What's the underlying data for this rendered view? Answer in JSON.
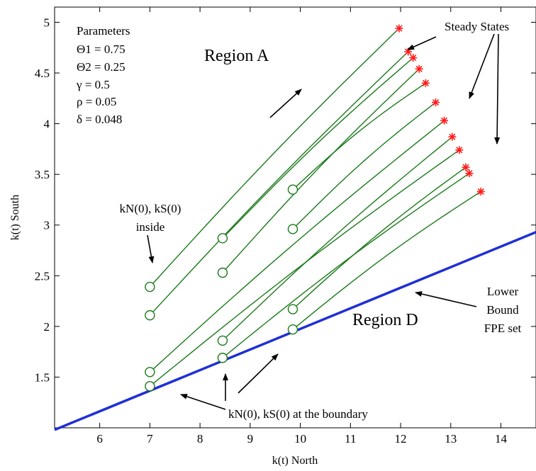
{
  "chart_data": {
    "type": "line",
    "title": "",
    "xlabel": "k(t) North",
    "ylabel": "k(t) South",
    "xlim": [
      5.1,
      14.7
    ],
    "ylim": [
      1.0,
      5.15
    ],
    "xticks": [
      6,
      7,
      8,
      9,
      10,
      11,
      12,
      13,
      14
    ],
    "yticks": [
      1.5,
      2,
      2.5,
      3,
      3.5,
      4,
      4.5,
      5
    ],
    "xtick_labels": [
      "6",
      "7",
      "8",
      "9",
      "10",
      "11",
      "12",
      "13",
      "14"
    ],
    "ytick_labels": [
      "1.5",
      "2",
      "2.5",
      "3",
      "3.5",
      "4",
      "4.5",
      "5"
    ],
    "grid": false,
    "colors": {
      "trajectory": "#1a7a1a",
      "boundary": "#1f2fd6",
      "steady_state": "#ff1a1a",
      "start_marker": "#1a7a1a"
    },
    "boundary": {
      "name": "Lower Bound FPE set",
      "x": [
        5.1,
        14.7
      ],
      "y": [
        0.98,
        2.93
      ]
    },
    "trajectories": [
      {
        "start": [
          7.0,
          2.39
        ],
        "end": [
          11.97,
          4.94
        ]
      },
      {
        "start": [
          7.0,
          2.11
        ],
        "end": [
          12.15,
          4.71
        ]
      },
      {
        "start": [
          8.45,
          2.87
        ],
        "end": [
          12.25,
          4.65
        ]
      },
      {
        "start": [
          8.45,
          2.53
        ],
        "end": [
          12.37,
          4.54
        ]
      },
      {
        "start": [
          9.85,
          3.35
        ],
        "end": [
          12.5,
          4.4
        ]
      },
      {
        "start": [
          9.85,
          2.96
        ],
        "end": [
          12.7,
          4.21
        ]
      },
      {
        "start": [
          7.0,
          1.55
        ],
        "end": [
          12.87,
          4.03
        ]
      },
      {
        "start": [
          8.45,
          1.86
        ],
        "end": [
          13.03,
          3.87
        ]
      },
      {
        "start": [
          7.0,
          1.41
        ],
        "end": [
          13.17,
          3.74
        ]
      },
      {
        "start": [
          9.85,
          2.17
        ],
        "end": [
          13.3,
          3.57
        ]
      },
      {
        "start": [
          8.45,
          1.69
        ],
        "end": [
          13.37,
          3.51
        ]
      },
      {
        "start": [
          9.85,
          1.97
        ],
        "end": [
          13.6,
          3.33
        ]
      }
    ]
  },
  "annotations": {
    "parameters_title": "Parameters",
    "param_theta1": "Θ1  = 0.75",
    "param_theta2": "Θ2  = 0.25",
    "param_gamma": "γ  = 0.5",
    "param_rho": "ρ  = 0.05",
    "param_delta": "δ  = 0.048",
    "region_a": "Region A",
    "region_d": "Region D",
    "steady_states": "Steady States",
    "inside_line1": "kN(0), kS(0)",
    "inside_line2": "inside",
    "boundary_note": "kN(0), kS(0) at the boundary",
    "lower_bound_line1": "Lower",
    "lower_bound_line2": "Bound",
    "lower_bound_line3": "FPE set"
  }
}
